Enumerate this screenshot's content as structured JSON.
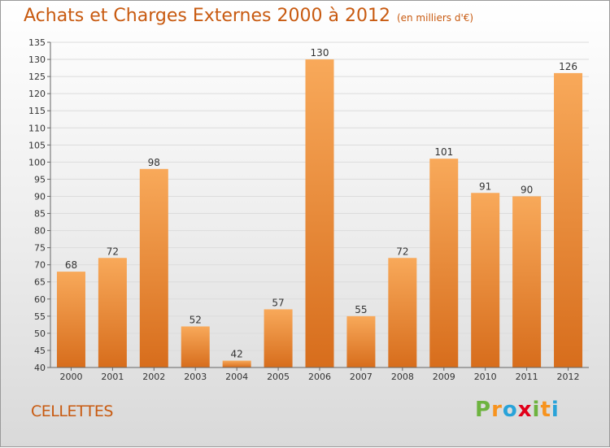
{
  "title": "Achats et Charges Externes 2000 à 2012",
  "subtitle": "(en milliers d'€)",
  "place_name": "CELLETTES",
  "logo": {
    "letters": [
      "P",
      "r",
      "o",
      "x",
      "i",
      "t",
      "i"
    ],
    "colors": [
      "#6db33f",
      "#f7931e",
      "#29a3d9",
      "#e2001a",
      "#6db33f",
      "#f7931e",
      "#29a3d9"
    ]
  },
  "colors": {
    "bar_light": "#f8a95a",
    "bar_dark": "#d76d1c",
    "title": "#c85a10"
  },
  "chart_data": {
    "type": "bar",
    "title": "Achats et Charges Externes 2000 à 2012",
    "categories": [
      "2000",
      "2001",
      "2002",
      "2003",
      "2004",
      "2005",
      "2006",
      "2007",
      "2008",
      "2009",
      "2010",
      "2011",
      "2012"
    ],
    "values": [
      68,
      72,
      98,
      52,
      42,
      57,
      130,
      55,
      72,
      101,
      91,
      90,
      126
    ],
    "ylim": [
      40,
      135
    ],
    "yticks": [
      40,
      45,
      50,
      55,
      60,
      65,
      70,
      75,
      80,
      85,
      90,
      95,
      100,
      105,
      110,
      115,
      120,
      125,
      130,
      135
    ],
    "grid": true,
    "xlabel": "",
    "ylabel": ""
  }
}
